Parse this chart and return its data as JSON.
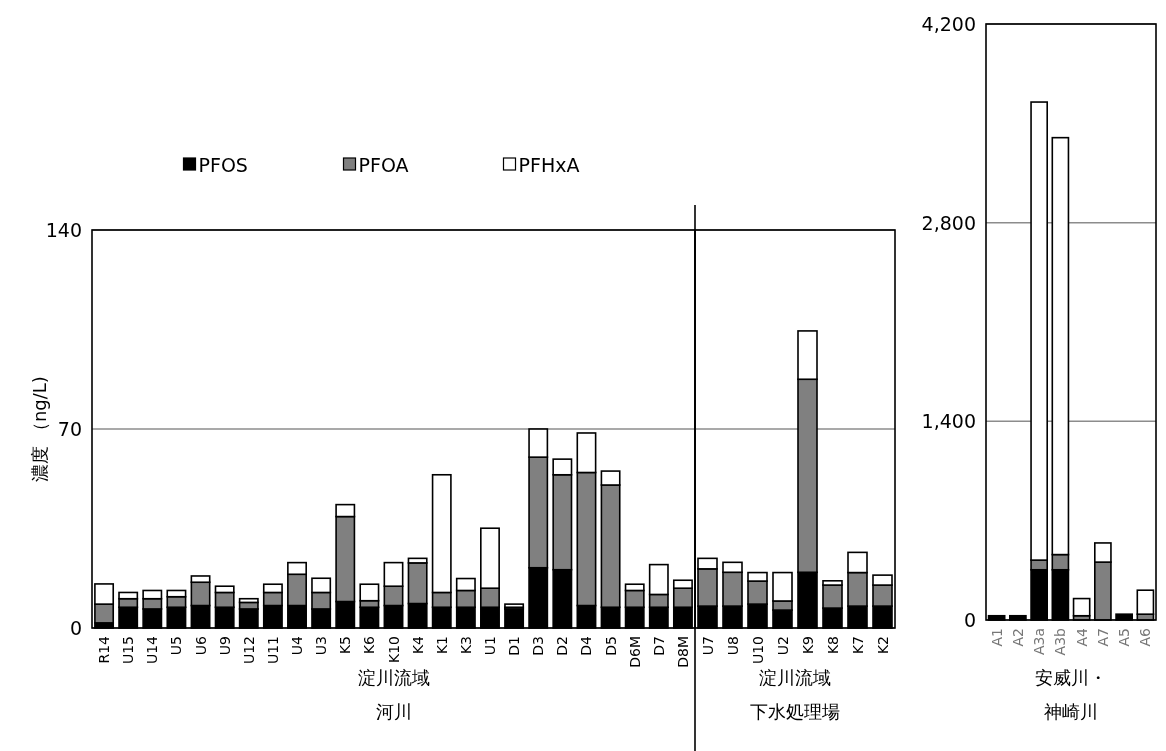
{
  "chart_data": [
    {
      "type": "bar",
      "stacked": true,
      "ylabel": "濃度 （ng/L)",
      "xlabel": "淀川流域河川",
      "legend": "top",
      "grid": "y",
      "ylim": [
        0,
        140
      ],
      "yticks": [
        0,
        70,
        140
      ],
      "categories": [
        "R14",
        "U15",
        "U14",
        "U5",
        "U6",
        "U9",
        "U12",
        "U11",
        "U4",
        "U3",
        "K5",
        "K6",
        "K10",
        "K4",
        "K1",
        "K3",
        "U1",
        "D1",
        "D3",
        "D2",
        "D4",
        "D5",
        "D6M",
        "D7",
        "D8M"
      ],
      "series": [
        {
          "name": "PFOS",
          "color": "#000000",
          "values": [
            1.8,
            7.3,
            6.7,
            7.3,
            7.9,
            7.3,
            6.7,
            7.9,
            7.9,
            6.7,
            9.3,
            7.3,
            7.9,
            8.6,
            7.3,
            7.3,
            7.3,
            6.7,
            21.2,
            20.5,
            7.9,
            7.3,
            7.3,
            7.3,
            7.3
          ]
        },
        {
          "name": "PFOA",
          "color": "#808080",
          "values": [
            6.6,
            3.0,
            3.6,
            3.7,
            8.2,
            5.2,
            2.3,
            4.6,
            11.0,
            5.8,
            29.9,
            2.3,
            6.8,
            14.3,
            5.2,
            5.9,
            6.7,
            0.6,
            38.9,
            33.4,
            46.8,
            43.0,
            5.9,
            4.5,
            6.7
          ]
        },
        {
          "name": "PFHxA",
          "color": "#ffffff",
          "values": [
            7.1,
            2.2,
            2.9,
            2.2,
            2.2,
            2.2,
            1.3,
            2.9,
            4.1,
            5.0,
            4.2,
            5.8,
            8.3,
            1.6,
            41.4,
            4.2,
            21.1,
            1.1,
            9.9,
            5.5,
            13.9,
            4.9,
            2.2,
            10.5,
            2.8
          ]
        }
      ]
    },
    {
      "type": "bar",
      "stacked": true,
      "xlabel": "淀川流域下水処理場",
      "grid": "y",
      "ylim": [
        0,
        140
      ],
      "yticks": [
        0,
        70,
        140
      ],
      "tick_labels": "x",
      "categories": [
        "U7",
        "U8",
        "U10",
        "U2",
        "K9",
        "K8",
        "K7",
        "K2"
      ],
      "series": [
        {
          "color": "#000000",
          "values": [
            7.7,
            7.7,
            8.4,
            6.3,
            19.6,
            7.0,
            7.7,
            7.7
          ]
        },
        {
          "color": "#808080",
          "values": [
            13.1,
            11.9,
            8.1,
            3.2,
            67.9,
            8.1,
            11.8,
            7.4
          ]
        },
        {
          "color": "#ffffff",
          "values": [
            3.7,
            3.5,
            3.0,
            10.0,
            17.0,
            1.5,
            7.1,
            3.5
          ]
        }
      ]
    },
    {
      "type": "bar",
      "stacked": true,
      "xlabel": "安威川・神崎川",
      "grid": "y",
      "ylim": [
        0,
        4200
      ],
      "yticks": [
        0,
        {
          "value": 1400,
          "label": "1,400"
        },
        {
          "value": 2800,
          "label": "2,800"
        },
        {
          "value": 4200,
          "label": "4,200"
        }
      ],
      "categories": [
        "A1",
        "A2",
        "A3a",
        "A3b",
        "A4",
        "A7",
        "A5",
        "A6"
      ],
      "series": [
        {
          "color": "#000000",
          "values": [
            30,
            30,
            354,
            354,
            0,
            0,
            41,
            0
          ]
        },
        {
          "color": "#808080",
          "values": [
            0,
            0,
            68,
            107,
            30,
            408,
            0,
            41
          ]
        },
        {
          "color": "#ffffff",
          "values": [
            0,
            0,
            3228,
            2938,
            121,
            135,
            0,
            169
          ]
        }
      ]
    }
  ]
}
